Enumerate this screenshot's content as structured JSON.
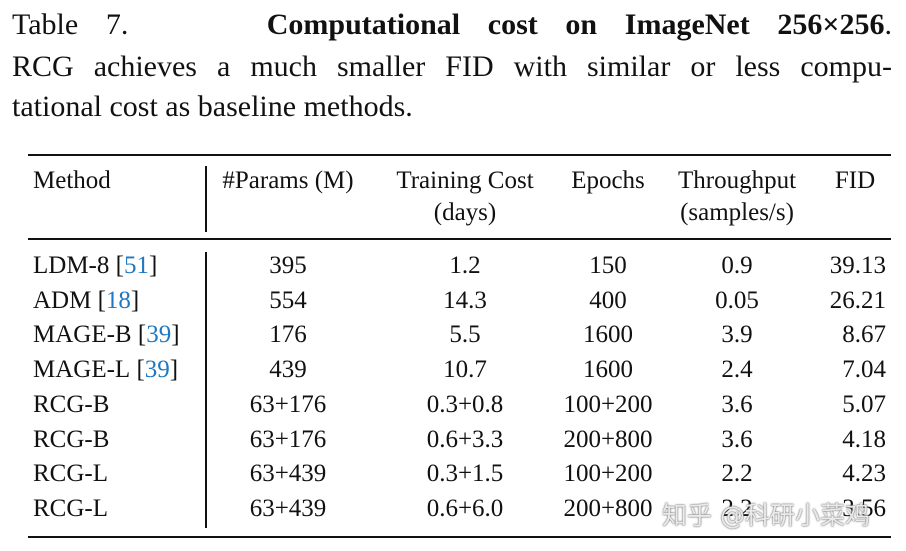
{
  "caption": {
    "label": "Table 7.",
    "title": "Computational cost on ImageNet 256×256",
    "title_end": ".",
    "lines": [
      "RCG achieves a much smaller FID with similar or less compu-",
      "tational cost as baseline methods."
    ]
  },
  "table": {
    "header": [
      [
        "Method"
      ],
      [
        "#Params (M)"
      ],
      [
        "Training Cost",
        "(days)"
      ],
      [
        "Epochs"
      ],
      [
        "Throughput",
        "(samples/s)"
      ],
      [
        "FID"
      ]
    ],
    "citation_brackets": [
      "[",
      "]"
    ],
    "rows": [
      {
        "method": "LDM-8",
        "ref": "51",
        "cells": [
          "395",
          "1.2",
          "150",
          "0.9",
          "39.13"
        ]
      },
      {
        "method": "ADM",
        "ref": "18",
        "cells": [
          "554",
          "14.3",
          "400",
          "0.05",
          "26.21"
        ]
      },
      {
        "method": "MAGE-B",
        "ref": "39",
        "cells": [
          "176",
          "5.5",
          "1600",
          "3.9",
          "8.67"
        ]
      },
      {
        "method": "MAGE-L",
        "ref": "39",
        "cells": [
          "439",
          "10.7",
          "1600",
          "2.4",
          "7.04"
        ]
      },
      {
        "method": "RCG-B",
        "cells": [
          "63+176",
          "0.3+0.8",
          "100+200",
          "3.6",
          "5.07"
        ]
      },
      {
        "method": "RCG-B",
        "cells": [
          "63+176",
          "0.6+3.3",
          "200+800",
          "3.6",
          "4.18"
        ]
      },
      {
        "method": "RCG-L",
        "cells": [
          "63+439",
          "0.3+1.5",
          "100+200",
          "2.2",
          "4.23"
        ]
      },
      {
        "method": "RCG-L",
        "cells": [
          "63+439",
          "0.6+6.0",
          "200+800",
          "2.2",
          "3.56"
        ]
      }
    ]
  },
  "watermark": "知乎 @科研小菜鸡"
}
